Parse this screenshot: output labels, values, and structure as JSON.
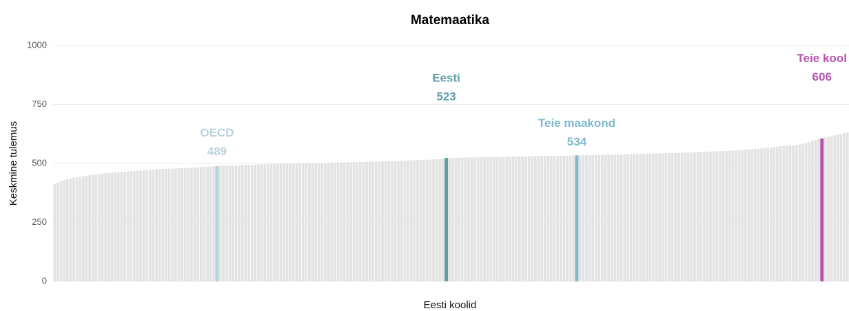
{
  "chart_data": {
    "type": "bar",
    "title": "Matemaatika",
    "xlabel": "Eesti koolid",
    "ylabel": "Keskmine tulemus",
    "ylim": [
      0,
      1000
    ],
    "yticks": [
      0,
      250,
      500,
      750,
      1000
    ],
    "grid": true,
    "color": "#e3e3e3",
    "highlight_colors": {
      "OECD": "#b7d4da",
      "Eesti": "#5f9ea8",
      "Teie maakond": "#80b9cc",
      "Teie kool": "#b452af"
    },
    "categories": [
      null,
      null,
      null,
      null,
      null,
      null,
      null,
      null,
      null,
      null,
      null,
      null,
      null,
      null,
      null,
      null,
      null,
      null,
      null,
      null,
      null,
      null,
      null,
      null,
      null,
      null,
      null,
      null,
      null,
      null,
      null,
      null,
      null,
      null,
      null,
      null,
      null,
      null,
      null,
      null,
      null,
      null,
      null,
      null,
      null,
      null,
      null,
      null,
      null,
      null,
      null,
      "OECD",
      null,
      null,
      null,
      null,
      null,
      null,
      null,
      null,
      null,
      null,
      null,
      null,
      null,
      null,
      null,
      null,
      null,
      null,
      null,
      null,
      null,
      null,
      null,
      null,
      null,
      null,
      null,
      null,
      null,
      null,
      null,
      null,
      null,
      null,
      null,
      null,
      null,
      null,
      null,
      null,
      null,
      null,
      null,
      null,
      null,
      null,
      null,
      null,
      null,
      null,
      null,
      null,
      null,
      null,
      null,
      null,
      null,
      null,
      null,
      null,
      null,
      null,
      null,
      null,
      null,
      null,
      null,
      null,
      null,
      null,
      null,
      "Eesti",
      null,
      null,
      null,
      null,
      null,
      null,
      null,
      null,
      null,
      null,
      null,
      null,
      null,
      null,
      null,
      null,
      null,
      null,
      null,
      null,
      null,
      null,
      null,
      null,
      null,
      null,
      null,
      null,
      null,
      null,
      null,
      null,
      null,
      null,
      null,
      null,
      null,
      null,
      null,
      null,
      "Teie maakond",
      null,
      null,
      null,
      null,
      null,
      null,
      null,
      null,
      null,
      null,
      null,
      null,
      null,
      null,
      null,
      null,
      null,
      null,
      null,
      null,
      null,
      null,
      null,
      null,
      null,
      null,
      null,
      null,
      null,
      null,
      null,
      null,
      null,
      null,
      null,
      null,
      null,
      null,
      null,
      null,
      null,
      null,
      null,
      null,
      null,
      null,
      null,
      null,
      null,
      null,
      null,
      null,
      null,
      null,
      null,
      null,
      null,
      null,
      null,
      null,
      null,
      null,
      null,
      null,
      null,
      null,
      null,
      null,
      null,
      null,
      null,
      null,
      null,
      null,
      null,
      null,
      "Teie kool",
      null,
      null,
      null,
      null,
      null,
      null,
      null,
      null
    ],
    "values": [
      413,
      418,
      425,
      430,
      433,
      436,
      439,
      442,
      444,
      446,
      448,
      450,
      452,
      454,
      456,
      457,
      459,
      460,
      461,
      462,
      463,
      464,
      465,
      466,
      467,
      468,
      469,
      470,
      471,
      472,
      473,
      474,
      475,
      476,
      476,
      477,
      478,
      478,
      479,
      480,
      480,
      481,
      481,
      482,
      483,
      483,
      484,
      485,
      486,
      487,
      488,
      489,
      490,
      490,
      491,
      491,
      492,
      492,
      493,
      493,
      494,
      494,
      495,
      495,
      496,
      496,
      496,
      497,
      497,
      497,
      498,
      498,
      498,
      499,
      499,
      499,
      500,
      500,
      500,
      500,
      501,
      501,
      501,
      502,
      502,
      502,
      503,
      503,
      503,
      504,
      504,
      504,
      505,
      505,
      505,
      506,
      506,
      506,
      507,
      507,
      508,
      508,
      509,
      509,
      509,
      510,
      510,
      511,
      511,
      512,
      512,
      513,
      513,
      514,
      514,
      515,
      515,
      516,
      516,
      517,
      518,
      519,
      520,
      523,
      523,
      523,
      524,
      524,
      524,
      525,
      525,
      525,
      526,
      526,
      526,
      527,
      527,
      527,
      528,
      528,
      528,
      528,
      529,
      529,
      529,
      529,
      530,
      530,
      530,
      530,
      531,
      531,
      531,
      531,
      532,
      532,
      532,
      532,
      533,
      533,
      533,
      533,
      533,
      534,
      534,
      534,
      535,
      535,
      535,
      535,
      536,
      536,
      536,
      537,
      537,
      537,
      538,
      538,
      538,
      539,
      539,
      539,
      540,
      540,
      540,
      541,
      541,
      541,
      542,
      542,
      542,
      543,
      543,
      544,
      544,
      545,
      545,
      546,
      546,
      547,
      547,
      548,
      548,
      549,
      549,
      550,
      550,
      551,
      552,
      552,
      553,
      553,
      554,
      555,
      556,
      557,
      557,
      558,
      559,
      560,
      561,
      562,
      563,
      565,
      566,
      567,
      569,
      571,
      573,
      574,
      575,
      576,
      577,
      578,
      580,
      583,
      587,
      592,
      597,
      600,
      603,
      606,
      610,
      613,
      616,
      619,
      622,
      625,
      629,
      632
    ]
  }
}
